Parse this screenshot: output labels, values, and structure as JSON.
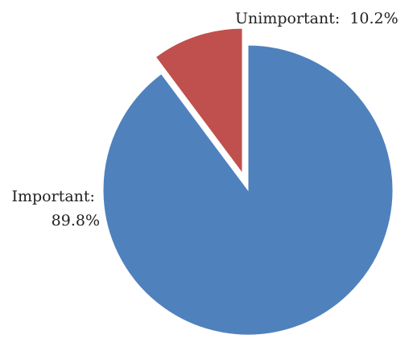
{
  "chart_data": {
    "type": "pie",
    "title": "",
    "series": [
      {
        "values": [
          89.8,
          10.2
        ]
      }
    ],
    "categories": [
      "Important",
      "Unimportant"
    ],
    "slices": [
      {
        "label": "Important",
        "value": 89.8,
        "display_label": "Important:",
        "display_value": "89.8%",
        "color": "#4F81BD"
      },
      {
        "label": "Unimportant",
        "value": 10.2,
        "display_label": "Unimportant:",
        "display_value": "10.2%",
        "color": "#C0504D",
        "exploded": true
      }
    ],
    "legend": "none",
    "grid": false
  }
}
